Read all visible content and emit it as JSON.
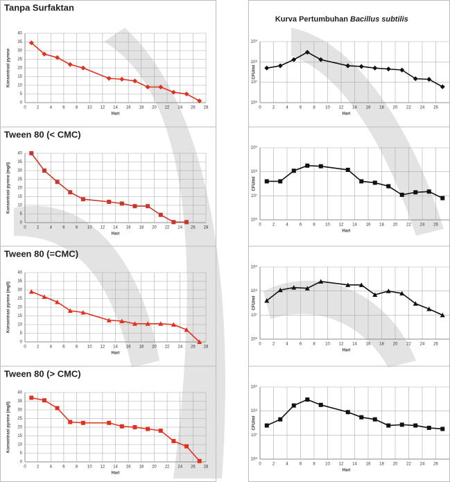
{
  "chart_data": [
    {
      "type": "line",
      "title": "Tanpa Surfaktan",
      "xlabel": "Hari",
      "ylabel": "Konsentrasi pyrene",
      "marker": "diamond",
      "grid": true,
      "log_scale": false,
      "x": [
        1,
        3,
        5,
        7,
        9,
        13,
        15,
        17,
        19,
        21,
        23,
        25,
        27
      ],
      "series": [
        {
          "color": "#e0301e",
          "values": [
            34.5,
            28,
            26,
            22,
            20,
            14,
            13.5,
            12.5,
            9,
            9,
            6,
            5,
            1
          ]
        }
      ],
      "xlim": [
        0,
        28
      ],
      "xticks": [
        0,
        2,
        4,
        6,
        8,
        10,
        12,
        14,
        16,
        18,
        20,
        22,
        24,
        26,
        28
      ],
      "ylim": [
        0,
        40
      ],
      "yticks": [
        0,
        5,
        10,
        15,
        20,
        25,
        30,
        35,
        40
      ]
    },
    {
      "type": "line",
      "title": "Tween 80 (< CMC)",
      "xlabel": "Hari",
      "ylabel": "Konsentrasi pyrene (mg/l)",
      "marker": "square",
      "grid": true,
      "log_scale": false,
      "x": [
        1,
        3,
        5,
        7,
        9,
        13,
        15,
        17,
        19,
        21,
        23,
        25
      ],
      "series": [
        {
          "color": "#c8382a",
          "values": [
            40,
            30,
            23.5,
            17.5,
            13.5,
            12,
            11,
            9.5,
            9.5,
            4.5,
            0.3,
            0.3
          ]
        }
      ],
      "xlim": [
        0,
        28
      ],
      "xticks": [
        0,
        2,
        4,
        6,
        8,
        10,
        12,
        14,
        16,
        18,
        20,
        22,
        24,
        26,
        28
      ],
      "ylim": [
        0,
        40
      ],
      "yticks": [
        0,
        5,
        10,
        15,
        20,
        25,
        30,
        35,
        40
      ]
    },
    {
      "type": "line",
      "title": "Tween 80 (=CMC)",
      "xlabel": "Hari",
      "ylabel": "Konsentrasi pyrene (mg/l)",
      "marker": "triangle",
      "grid": true,
      "log_scale": false,
      "x": [
        1,
        3,
        5,
        7,
        9,
        13,
        15,
        17,
        19,
        21,
        23,
        25,
        27
      ],
      "series": [
        {
          "color": "#e0301e",
          "values": [
            29,
            26,
            23,
            18,
            17,
            12.5,
            12,
            10.5,
            10.5,
            10.5,
            10,
            7,
            0
          ]
        }
      ],
      "xlim": [
        0,
        28
      ],
      "xticks": [
        0,
        2,
        4,
        6,
        8,
        10,
        12,
        14,
        16,
        18,
        20,
        22,
        24,
        26,
        28
      ],
      "ylim": [
        0,
        40
      ],
      "yticks": [
        0,
        5,
        10,
        15,
        20,
        25,
        30,
        35,
        40
      ]
    },
    {
      "type": "line",
      "title": "Tween 80 (> CMC)",
      "xlabel": "Hari",
      "ylabel": "Konsentrasi pyrene (mg/l)",
      "marker": "square",
      "grid": true,
      "log_scale": false,
      "x": [
        1,
        3,
        5,
        7,
        9,
        13,
        15,
        17,
        19,
        21,
        23,
        25,
        27
      ],
      "series": [
        {
          "color": "#e0301e",
          "values": [
            37,
            35.5,
            31,
            23,
            22.5,
            22.5,
            20.5,
            20,
            19,
            18,
            12,
            9,
            0.5
          ]
        }
      ],
      "xlim": [
        0,
        28
      ],
      "xticks": [
        0,
        2,
        4,
        6,
        8,
        10,
        12,
        14,
        16,
        18,
        20,
        22,
        24,
        26,
        28
      ],
      "ylim": [
        0,
        40
      ],
      "yticks": [
        0,
        5,
        10,
        15,
        20,
        25,
        30,
        35,
        40
      ]
    },
    {
      "type": "line",
      "title": "Kurva Pertumbuhan",
      "title_organism": "Bacillus subtilis",
      "xlabel": "Hari",
      "ylabel": "CFU/ml",
      "marker": "diamond",
      "grid": true,
      "log_scale": true,
      "x": [
        1,
        3,
        5,
        7,
        9,
        13,
        15,
        17,
        19,
        21,
        23,
        25,
        27
      ],
      "series": [
        {
          "color": "#111111",
          "values": [
            50000000,
            65000000,
            130000000,
            300000000,
            130000000,
            65000000,
            60000000,
            50000000,
            45000000,
            40000000,
            15000000,
            14000000,
            6000000
          ]
        }
      ],
      "xlim": [
        0,
        28
      ],
      "xticks": [
        0,
        2,
        4,
        6,
        8,
        10,
        12,
        14,
        16,
        18,
        20,
        22,
        24,
        26
      ],
      "ylim": [
        1000000,
        1000000000
      ],
      "yticks": [
        {
          "value": 1000000,
          "label": "10⁶"
        },
        {
          "value": 10000000,
          "label": "10⁷"
        },
        {
          "value": 100000000,
          "label": "10⁸"
        },
        {
          "value": 1000000000,
          "label": "10⁹"
        }
      ]
    },
    {
      "type": "line",
      "xlabel": "Hari",
      "ylabel": "CFU/ml",
      "marker": "square",
      "grid": true,
      "log_scale": true,
      "x": [
        1,
        3,
        5,
        7,
        9,
        13,
        15,
        17,
        19,
        21,
        23,
        25,
        27
      ],
      "series": [
        {
          "color": "#111111",
          "values": [
            40000000,
            40000000,
            110000000,
            180000000,
            170000000,
            120000000,
            40000000,
            35000000,
            25000000,
            11000000,
            14000000,
            15000000,
            8000000
          ]
        }
      ],
      "xlim": [
        0,
        28
      ],
      "xticks": [
        0,
        2,
        4,
        6,
        8,
        10,
        12,
        14,
        16,
        18,
        20,
        22,
        24,
        26
      ],
      "ylim": [
        1000000,
        1000000000
      ],
      "yticks": [
        {
          "value": 1000000,
          "label": "10⁶"
        },
        {
          "value": 10000000,
          "label": "10⁷"
        },
        {
          "value": 100000000,
          "label": "10⁸"
        },
        {
          "value": 1000000000,
          "label": "10⁹"
        }
      ]
    },
    {
      "type": "line",
      "xlabel": "Hari",
      "ylabel": "CFU/ml",
      "marker": "triangle",
      "grid": true,
      "log_scale": true,
      "x": [
        1,
        3,
        5,
        7,
        9,
        13,
        15,
        17,
        19,
        21,
        23,
        25,
        27
      ],
      "series": [
        {
          "color": "#111111",
          "values": [
            40000000,
            110000000,
            140000000,
            130000000,
            250000000,
            180000000,
            180000000,
            70000000,
            100000000,
            80000000,
            30000000,
            18000000,
            10000000
          ]
        }
      ],
      "xlim": [
        0,
        28
      ],
      "xticks": [
        0,
        2,
        4,
        6,
        8,
        10,
        12,
        14,
        16,
        18,
        20,
        22,
        24,
        26
      ],
      "ylim": [
        1000000,
        1000000000
      ],
      "yticks": [
        {
          "value": 1000000,
          "label": "10⁶"
        },
        {
          "value": 10000000,
          "label": "10⁷"
        },
        {
          "value": 100000000,
          "label": "10⁸"
        },
        {
          "value": 1000000000,
          "label": "10⁹"
        }
      ]
    },
    {
      "type": "line",
      "xlabel": "Hari",
      "ylabel": "CFU/ml",
      "marker": "square",
      "grid": true,
      "log_scale": true,
      "x": [
        1,
        3,
        5,
        7,
        9,
        13,
        15,
        17,
        19,
        21,
        23,
        25,
        27
      ],
      "series": [
        {
          "color": "#111111",
          "values": [
            25000000,
            45000000,
            170000000,
            300000000,
            180000000,
            90000000,
            55000000,
            45000000,
            25000000,
            27000000,
            25000000,
            20000000,
            18000000
          ]
        }
      ],
      "xlim": [
        0,
        28
      ],
      "xticks": [
        0,
        2,
        4,
        6,
        8,
        10,
        12,
        14,
        16,
        18,
        20,
        22,
        24,
        26
      ],
      "ylim": [
        1000000,
        1000000000
      ],
      "yticks": [
        {
          "value": 1000000,
          "label": "10⁶"
        },
        {
          "value": 10000000,
          "label": "10⁷"
        },
        {
          "value": 100000000,
          "label": "10⁸"
        },
        {
          "value": 1000000000,
          "label": "10⁹"
        }
      ]
    }
  ]
}
